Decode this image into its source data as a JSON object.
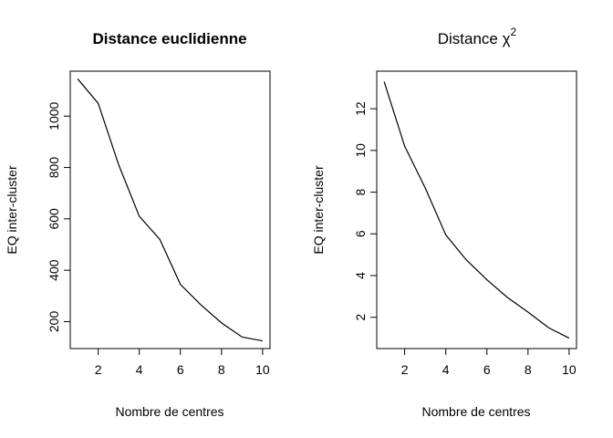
{
  "chart_data": [
    {
      "type": "line",
      "title": "Distance euclidienne",
      "title_bold": true,
      "xlabel": "Nombre de centres",
      "ylabel": "EQ inter-cluster",
      "x": [
        1,
        2,
        3,
        4,
        5,
        6,
        7,
        8,
        9,
        10
      ],
      "series": [
        {
          "values": [
            1145,
            1050,
            810,
            610,
            520,
            345,
            265,
            195,
            140,
            125
          ]
        }
      ],
      "xlim": [
        0.64,
        10.36
      ],
      "ylim": [
        95,
        1175
      ],
      "xticks": [
        2,
        4,
        6,
        8,
        10
      ],
      "yticks": [
        200,
        400,
        600,
        800,
        1000
      ],
      "grid": false
    },
    {
      "type": "line",
      "title": "Distance χ",
      "title_superscript": "2",
      "title_bold": false,
      "xlabel": "Nombre de centres",
      "ylabel": "EQ inter-cluster",
      "x": [
        1,
        2,
        3,
        4,
        5,
        6,
        7,
        8,
        9,
        10
      ],
      "series": [
        {
          "values": [
            13.3,
            10.2,
            8.2,
            5.95,
            4.75,
            3.8,
            2.95,
            2.25,
            1.5,
            1.0
          ]
        }
      ],
      "xlim": [
        0.64,
        10.36
      ],
      "ylim": [
        0.5,
        13.8
      ],
      "xticks": [
        2,
        4,
        6,
        8,
        10
      ],
      "yticks": [
        2,
        4,
        6,
        8,
        10,
        12
      ],
      "grid": false
    }
  ]
}
